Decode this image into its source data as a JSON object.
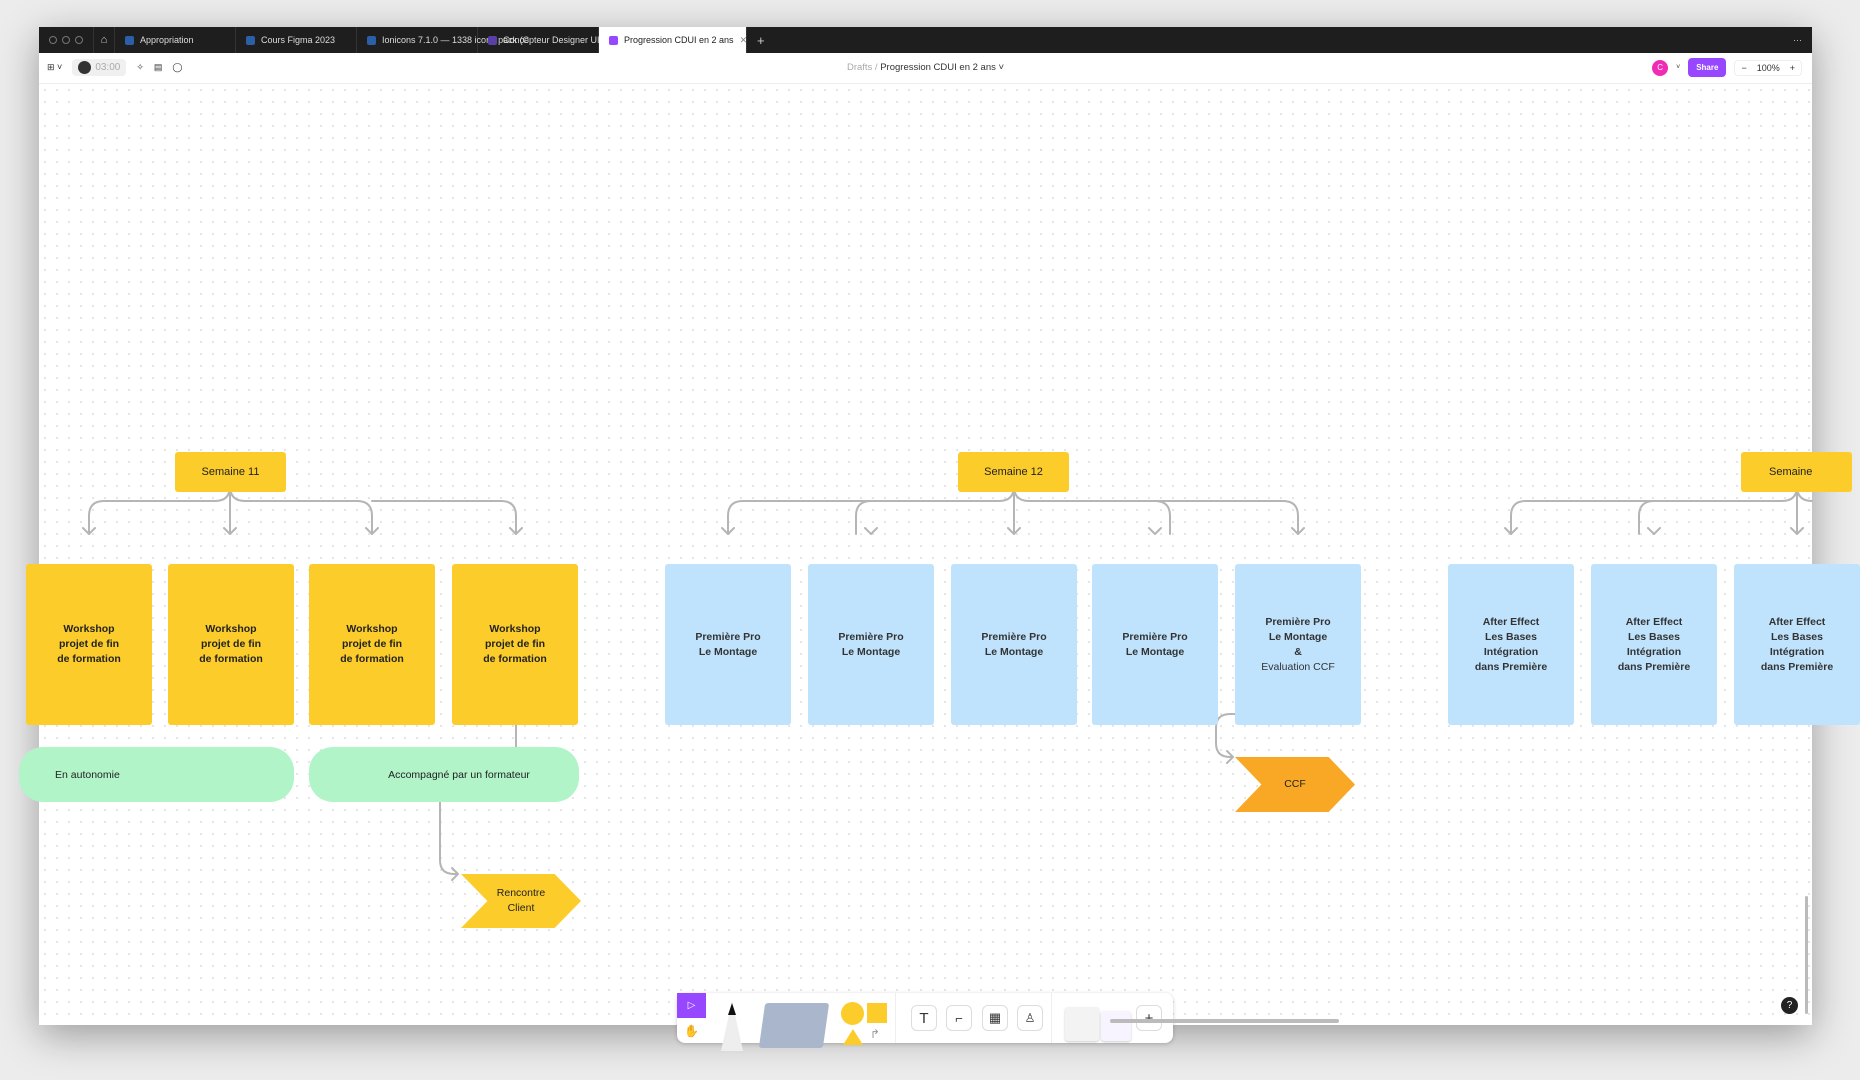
{
  "tabs": [
    {
      "label": "Appropriation"
    },
    {
      "label": "Cours Figma 2023"
    },
    {
      "label": "Ionicons 7.1.0 — 1338 icons pack (C"
    },
    {
      "label": "Concepteur Designer UI"
    },
    {
      "label": "Progression CDUI en 2 ans",
      "active": true
    }
  ],
  "toolbar": {
    "timer": "03:00",
    "breadcrumb_root": "Drafts",
    "file_name": "Progression CDUI en 2 ans",
    "user_initial": "C",
    "share_label": "Share",
    "zoom_level": "100%"
  },
  "canvas": {
    "weeks": [
      {
        "label": "Semaine 11"
      },
      {
        "label": "Semaine 12"
      },
      {
        "label": "Semaine"
      }
    ],
    "week11_cards": [
      "Workshop\nprojet de fin\nde formation",
      "Workshop\nprojet de fin\nde formation",
      "Workshop\nprojet de fin\nde formation",
      "Workshop\nprojet de fin\nde formation"
    ],
    "week12_cards": [
      "Première Pro\nLe Montage",
      "Première Pro\nLe Montage",
      "Première Pro\nLe Montage",
      "Première Pro\nLe Montage"
    ],
    "week12_last_card": {
      "bold": "Première Pro\nLe Montage\n&",
      "normal": "Evaluation CCF"
    },
    "week13_cards": [
      "After Effect\nLes Bases\nIntégration\ndans Première",
      "After Effect\nLes Bases\nIntégration\ndans Première",
      "After Effect\nLes Bases\nIntégration\ndans Première"
    ],
    "pills": [
      "En autonomie",
      "Accompagné par un formateur"
    ],
    "milestones": [
      "Rencontre\nClient",
      "CCF"
    ]
  },
  "colors": {
    "yellow": "#fccd2a",
    "blue": "#bfe3fd",
    "green": "#b1f4c8",
    "orange": "#f9a825",
    "accent": "#9747ff"
  }
}
